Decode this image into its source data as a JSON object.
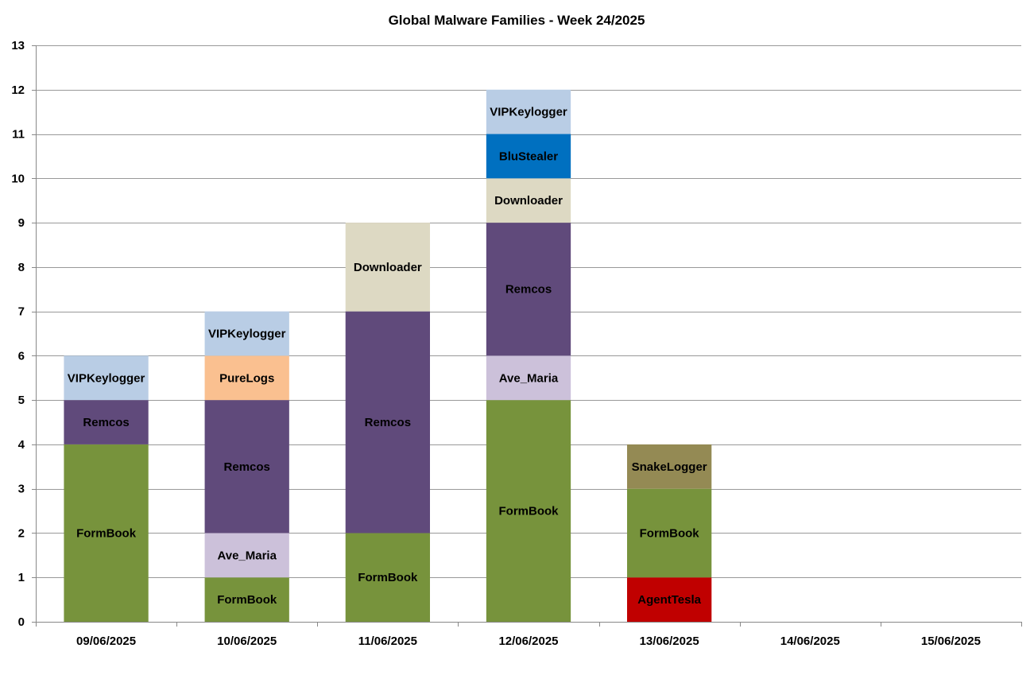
{
  "chart_data": {
    "type": "bar",
    "stacked": true,
    "title": "Global Malware Families - Week 24/2025",
    "xlabel": "",
    "ylabel": "",
    "ylim": [
      0,
      13
    ],
    "yticks": [
      0,
      1,
      2,
      3,
      4,
      5,
      6,
      7,
      8,
      9,
      10,
      11,
      12,
      13
    ],
    "grid": true,
    "legend": "none",
    "categories": [
      "09/06/2025",
      "10/06/2025",
      "11/06/2025",
      "12/06/2025",
      "13/06/2025",
      "14/06/2025",
      "15/06/2025"
    ],
    "series": [
      {
        "name": "AgentTesla",
        "color": "#C00000",
        "values": [
          0,
          0,
          0,
          0,
          1,
          0,
          0
        ]
      },
      {
        "name": "FormBook",
        "color": "#77933C",
        "values": [
          4,
          1,
          2,
          5,
          2,
          0,
          0
        ]
      },
      {
        "name": "Ave_Maria",
        "color": "#CCC1DA",
        "values": [
          0,
          1,
          0,
          1,
          0,
          0,
          0
        ]
      },
      {
        "name": "Remcos",
        "color": "#604A7B",
        "values": [
          1,
          3,
          5,
          3,
          0,
          0,
          0
        ]
      },
      {
        "name": "SnakeLogger",
        "color": "#948A54",
        "values": [
          0,
          0,
          0,
          0,
          1,
          0,
          0
        ]
      },
      {
        "name": "PureLogs",
        "color": "#FAC090",
        "values": [
          0,
          1,
          0,
          0,
          0,
          0,
          0
        ]
      },
      {
        "name": "Downloader",
        "color": "#DDD9C3",
        "values": [
          0,
          0,
          2,
          1,
          0,
          0,
          0
        ]
      },
      {
        "name": "BluStealer",
        "color": "#0070C0",
        "values": [
          0,
          0,
          0,
          1,
          0,
          0,
          0
        ]
      },
      {
        "name": "VIPKeylogger",
        "color": "#B9CDE5",
        "values": [
          1,
          1,
          0,
          1,
          0,
          0,
          0
        ]
      }
    ]
  }
}
